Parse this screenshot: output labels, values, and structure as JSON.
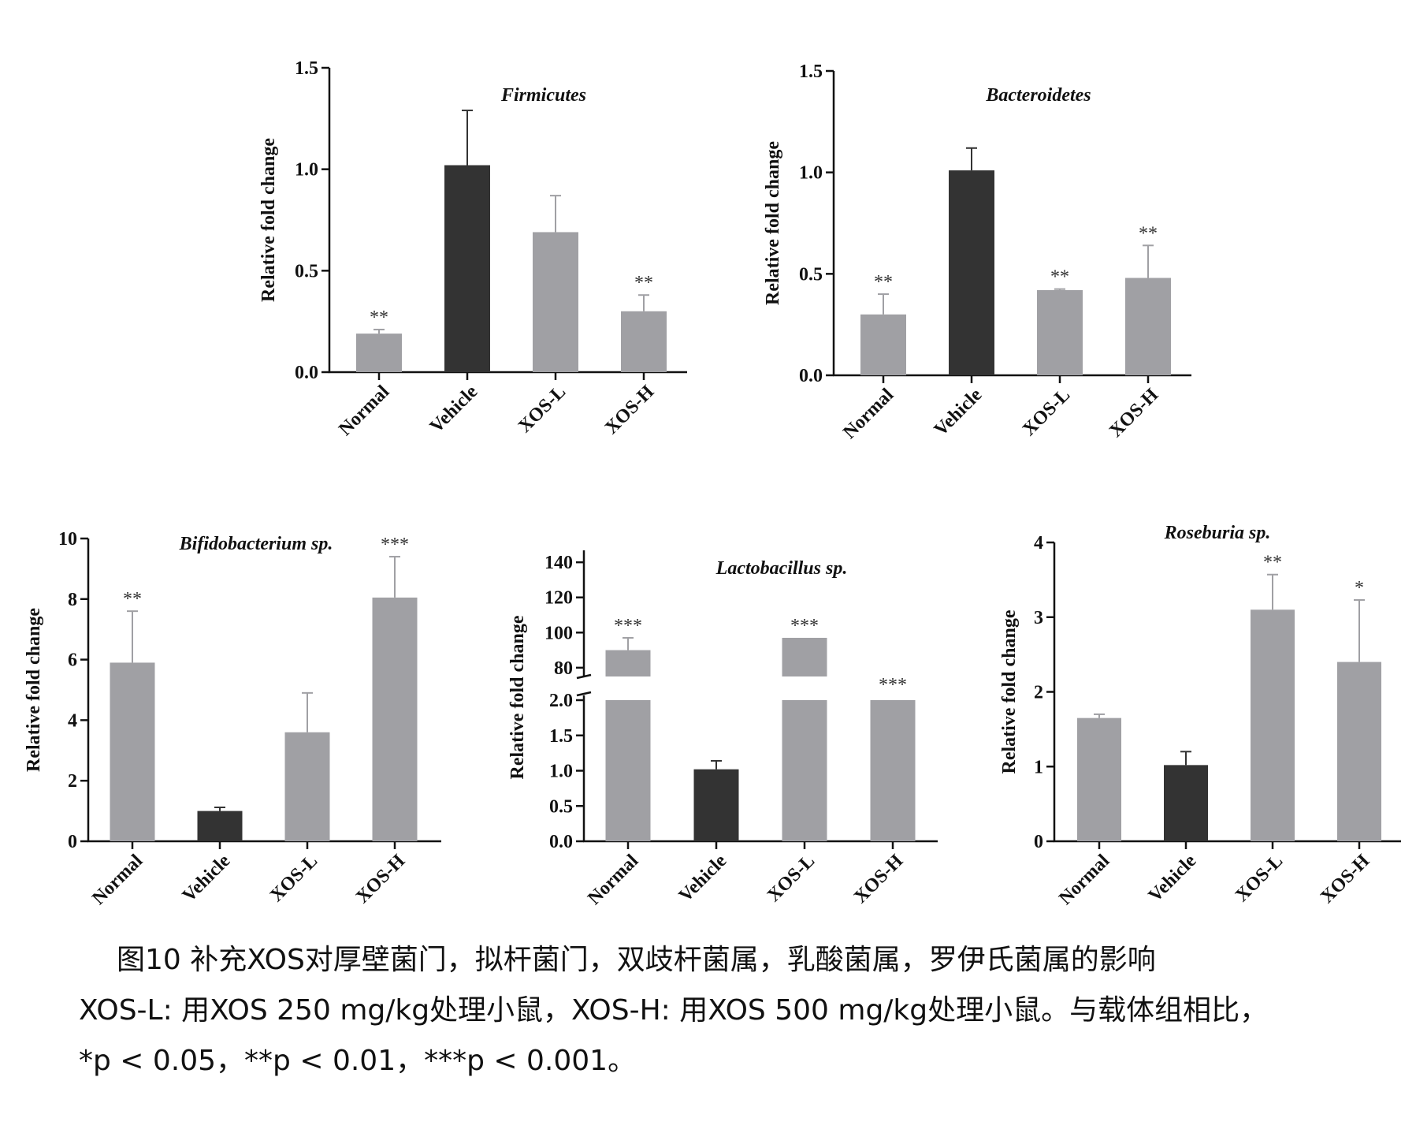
{
  "chart_data": [
    {
      "type": "bar",
      "title": "Firmicutes",
      "ylabel": "Relative fold change",
      "categories": [
        "Normal",
        "Vehicle",
        "XOS-L",
        "XOS-H"
      ],
      "values": [
        0.19,
        1.02,
        0.69,
        0.3
      ],
      "errors": [
        0.02,
        0.27,
        0.18,
        0.08
      ],
      "significance": [
        "**",
        "",
        "",
        "**"
      ],
      "ylim": [
        0,
        1.5
      ],
      "yticks": [
        "0.0",
        "0.5",
        "1.0",
        "1.5"
      ],
      "colors": [
        "#a0a0a4",
        "#333333",
        "#a0a0a4",
        "#a0a0a4"
      ]
    },
    {
      "type": "bar",
      "title": "Bacteroidetes",
      "ylabel": "Relative fold change",
      "categories": [
        "Normal",
        "Vehicle",
        "XOS-L",
        "XOS-H"
      ],
      "values": [
        0.3,
        1.01,
        0.42,
        0.48
      ],
      "errors": [
        0.1,
        0.11,
        0.005,
        0.16
      ],
      "significance": [
        "**",
        "",
        "**",
        "**"
      ],
      "ylim": [
        0,
        1.5
      ],
      "yticks": [
        "0.0",
        "0.5",
        "1.0",
        "1.5"
      ],
      "colors": [
        "#a0a0a4",
        "#333333",
        "#a0a0a4",
        "#a0a0a4"
      ]
    },
    {
      "type": "bar",
      "title": "Bifidobacterium sp.",
      "ylabel": "Relative fold change",
      "categories": [
        "Normal",
        "Vehicle",
        "XOS-L",
        "XOS-H"
      ],
      "values": [
        5.9,
        1.0,
        3.6,
        8.05
      ],
      "errors": [
        1.7,
        0.12,
        1.3,
        1.35
      ],
      "significance": [
        "**",
        "",
        "",
        "***"
      ],
      "ylim": [
        0,
        10
      ],
      "yticks": [
        "0",
        "2",
        "4",
        "6",
        "8",
        "10"
      ],
      "colors": [
        "#a0a0a4",
        "#333333",
        "#a0a0a4",
        "#a0a0a4"
      ]
    },
    {
      "type": "bar",
      "title": "Lactobacillus sp.",
      "ylabel": "Relative fold change",
      "categories": [
        "Normal",
        "Vehicle",
        "XOS-L",
        "XOS-H"
      ],
      "values": [
        90,
        1.02,
        97,
        2.0
      ],
      "errors": [
        7,
        0.12,
        0,
        0
      ],
      "significance": [
        "***",
        "",
        "***",
        "***"
      ],
      "axis_break": true,
      "ylim_lower": [
        0,
        2.0
      ],
      "ylim_upper": [
        75,
        145
      ],
      "yticks_lower": [
        "0.0",
        "0.5",
        "1.0",
        "1.5",
        "2.0"
      ],
      "yticks_upper": [
        "80",
        "100",
        "120",
        "140"
      ],
      "colors": [
        "#a0a0a4",
        "#333333",
        "#a0a0a4",
        "#a0a0a4"
      ]
    },
    {
      "type": "bar",
      "title": "Roseburia sp.",
      "ylabel": "Relative fold change",
      "categories": [
        "Normal",
        "Vehicle",
        "XOS-L",
        "XOS-H"
      ],
      "values": [
        1.65,
        1.02,
        3.1,
        2.4
      ],
      "errors": [
        0.05,
        0.18,
        0.47,
        0.83
      ],
      "significance": [
        "",
        "",
        "**",
        "*"
      ],
      "ylim": [
        0,
        4
      ],
      "yticks": [
        "0",
        "1",
        "2",
        "3",
        "4"
      ],
      "colors": [
        "#a0a0a4",
        "#333333",
        "#a0a0a4",
        "#a0a0a4"
      ]
    }
  ],
  "caption": {
    "title": "图10 补充XOS对厚壁菌门，拟杆菌门，双歧杆菌属，乳酸菌属，罗伊氏菌属的影响",
    "note": "XOS-L: 用XOS 250 mg/kg处理小鼠，XOS-H: 用XOS 500 mg/kg处理小鼠。与载体组相比，",
    "significance": "*p < 0.05，**p < 0.01，***p < 0.001。"
  }
}
